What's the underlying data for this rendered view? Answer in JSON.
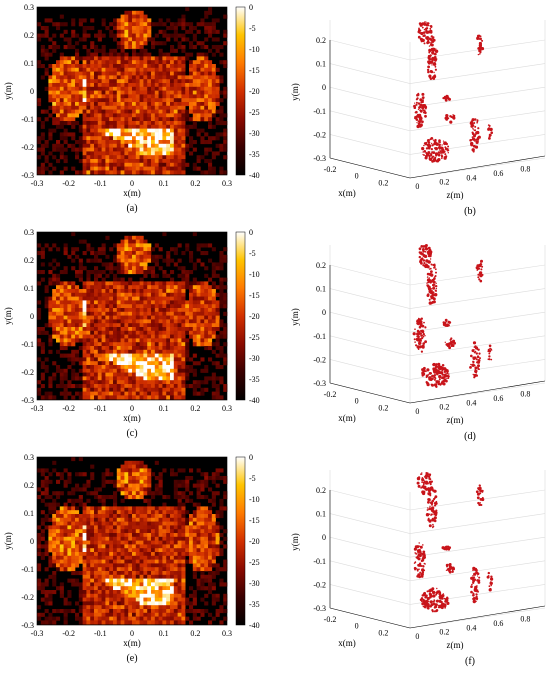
{
  "figure": {
    "panels_2d": [
      {
        "label": "(a)",
        "letter": "a"
      },
      {
        "label": "(c)",
        "letter": "c"
      },
      {
        "label": "(e)",
        "letter": "e"
      }
    ],
    "panels_3d": [
      {
        "label": "(b)",
        "letter": "b"
      },
      {
        "label": "(d)",
        "letter": "d"
      },
      {
        "label": "(f)",
        "letter": "f"
      }
    ],
    "axes_2d": {
      "xlabel": "x(m)",
      "ylabel": "y(m)",
      "xticks": [
        "-0.3",
        "-0.2",
        "-0.1",
        "0",
        "0.1",
        "0.2",
        "0.3"
      ],
      "yticks": [
        "0.3",
        "0.2",
        "0.1",
        "0",
        "-0.1",
        "-0.2",
        "-0.3"
      ],
      "colorbar_ticks": [
        "0",
        "-5",
        "-10",
        "-15",
        "-20",
        "-25",
        "-30",
        "-35",
        "-40"
      ]
    },
    "axes_3d": {
      "xlabel": "x(m)",
      "ylabel": "y(m)",
      "zlabel": "z(m)",
      "xticks": [
        "-0.2",
        "0",
        "0.2"
      ],
      "yticks": [
        "0.2",
        "0.1",
        "0",
        "-0.1",
        "-0.2",
        "-0.3"
      ],
      "zticks": [
        "0",
        "0.2",
        "0.4",
        "0.6",
        "0.8"
      ]
    },
    "colors": {
      "colormap": [
        "#000000",
        "#3a0000",
        "#8a0a00",
        "#d23000",
        "#ff7a00",
        "#ffc400",
        "#ffffff"
      ],
      "voxel": "#c8141a"
    }
  }
}
